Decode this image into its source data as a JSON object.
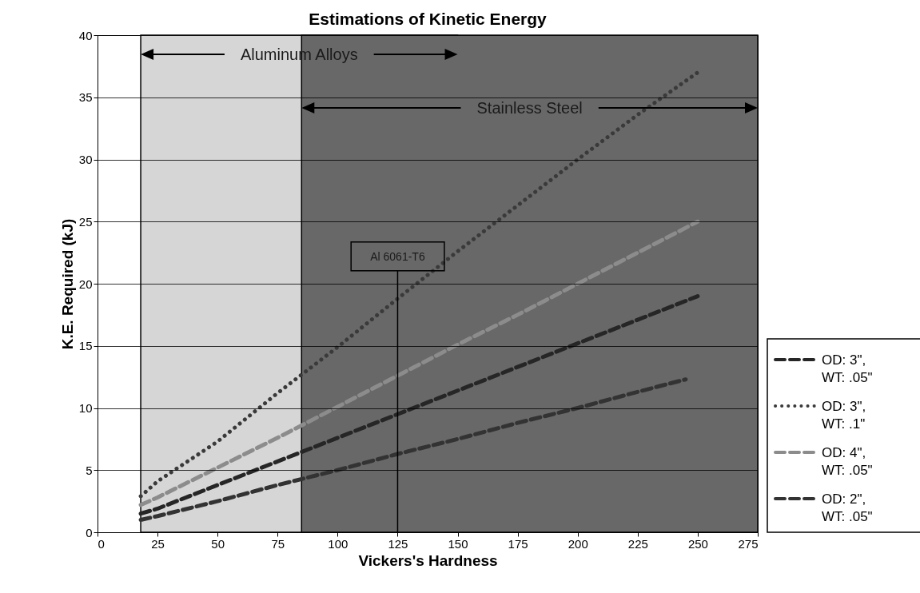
{
  "chart_data": {
    "type": "line",
    "title": "Estimations of Kinetic Energy",
    "xlabel": "Vickers's Hardness",
    "ylabel": "K.E. Required (kJ)",
    "x": [
      18,
      25,
      50,
      75,
      100,
      125,
      150,
      175,
      200,
      225,
      250
    ],
    "series": [
      {
        "name": "OD: 3\", WT: .05\"",
        "color": "#262626",
        "line_style": "dashed",
        "values": [
          1.5,
          1.9,
          3.8,
          5.7,
          7.6,
          9.5,
          11.4,
          13.3,
          15.2,
          17.1,
          19
        ]
      },
      {
        "name": "OD: 3\", WT: .1\"",
        "color": "#3a3a3a",
        "line_style": "dotted",
        "values": [
          2.9,
          4.1,
          7.3,
          11.2,
          14.9,
          18.8,
          22.6,
          26.3,
          30,
          33.6,
          37
        ]
      },
      {
        "name": "OD: 4\", WT: .05\"",
        "color": "#8c8c8c",
        "line_style": "dashed",
        "values": [
          2.2,
          2.8,
          5.2,
          7.6,
          10.1,
          12.6,
          15.1,
          17.5,
          20,
          22.5,
          25
        ]
      },
      {
        "name": "OD: 2\", WT: .05\"",
        "color": "#333333",
        "line_style": "dashed",
        "x": [
          18,
          25,
          50,
          75,
          100,
          125,
          150,
          175,
          200,
          225,
          245
        ],
        "values": [
          1,
          1.3,
          2.5,
          3.8,
          5,
          6.3,
          7.5,
          8.8,
          10,
          11.3,
          12.3
        ]
      }
    ],
    "xlim": [
      0,
      275
    ],
    "xticks": [
      0,
      25,
      50,
      75,
      100,
      125,
      150,
      175,
      200,
      225,
      250,
      275
    ],
    "ylim": [
      0,
      40
    ],
    "yticks": [
      0,
      5,
      10,
      15,
      20,
      25,
      30,
      35,
      40
    ],
    "grid": "y",
    "legend": "right",
    "marker": "none",
    "bands": [
      {
        "axis": "x",
        "from": 18,
        "to": 150,
        "label": "Aluminum Alloys",
        "color": "#d6d6d6"
      },
      {
        "axis": "x",
        "from": 85,
        "to": 275,
        "label": "Stainless Steel",
        "color": "#686868"
      }
    ],
    "ref_lines": [
      {
        "axis": "x",
        "value": 125,
        "label": "Al 6061-T6"
      }
    ]
  }
}
